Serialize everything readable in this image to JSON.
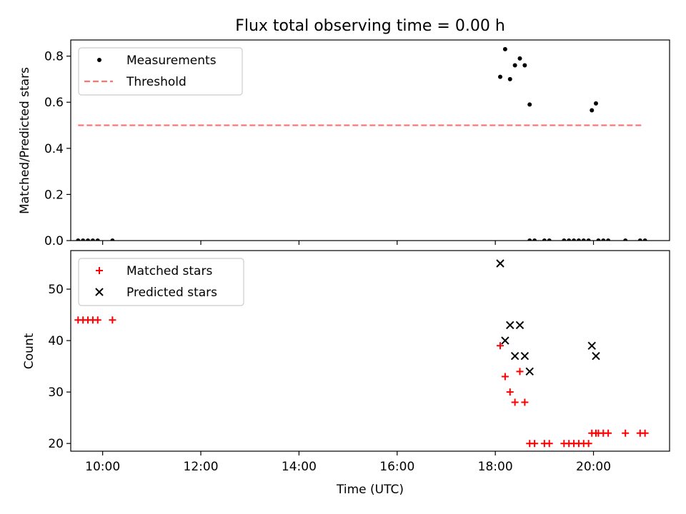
{
  "chart_data": [
    {
      "type": "scatter",
      "title": "Flux total observing time = 0.00 h",
      "xlabel": "",
      "ylabel": "Matched/Predicted stars",
      "x_unit": "time of day (UTC)",
      "xlim": [
        "09:21",
        "21:33"
      ],
      "ylim": [
        0,
        0.87
      ],
      "y_ticks": [
        0,
        0.2,
        0.4,
        0.6,
        0.8
      ],
      "y_tick_labels": [
        "0.0",
        "0.2",
        "0.4",
        "0.6",
        "0.8"
      ],
      "x_tick_labels_visible": false,
      "grid": false,
      "legend": "top-left",
      "series": [
        {
          "name": "Measurements",
          "marker": "dot",
          "color": "#000000",
          "points": [
            [
              "09:30",
              0
            ],
            [
              "09:36",
              0
            ],
            [
              "09:42",
              0
            ],
            [
              "09:48",
              0
            ],
            [
              "09:54",
              0
            ],
            [
              "10:12",
              0
            ],
            [
              "18:06",
              0.71
            ],
            [
              "18:12",
              0.83
            ],
            [
              "18:18",
              0.7
            ],
            [
              "18:24",
              0.76
            ],
            [
              "18:30",
              0.79
            ],
            [
              "18:36",
              0.76
            ],
            [
              "18:42",
              0.59
            ],
            [
              "18:42",
              0
            ],
            [
              "18:48",
              0
            ],
            [
              "19:00",
              0
            ],
            [
              "19:06",
              0
            ],
            [
              "19:24",
              0
            ],
            [
              "19:30",
              0
            ],
            [
              "19:36",
              0
            ],
            [
              "19:42",
              0
            ],
            [
              "19:48",
              0
            ],
            [
              "19:54",
              0
            ],
            [
              "19:58",
              0.565
            ],
            [
              "20:03",
              0.595
            ],
            [
              "20:06",
              0
            ],
            [
              "20:12",
              0
            ],
            [
              "20:18",
              0
            ],
            [
              "20:39",
              0
            ],
            [
              "20:57",
              0
            ],
            [
              "21:03",
              0
            ]
          ]
        },
        {
          "name": "Threshold",
          "style": "dashed",
          "color": "#ff7373",
          "points": [
            [
              "09:30",
              0.5
            ],
            [
              "21:00",
              0.5
            ]
          ]
        }
      ]
    },
    {
      "type": "scatter",
      "title": "",
      "xlabel": "Time (UTC)",
      "ylabel": "Count",
      "xlim": [
        "09:21",
        "21:33"
      ],
      "ylim": [
        18.5,
        57.5
      ],
      "y_ticks": [
        20,
        30,
        40,
        50
      ],
      "y_tick_labels": [
        "20",
        "30",
        "40",
        "50"
      ],
      "x_ticks": [
        "10:00",
        "12:00",
        "14:00",
        "16:00",
        "18:00",
        "20:00"
      ],
      "x_tick_labels": [
        "10:00",
        "12:00",
        "14:00",
        "16:00",
        "18:00",
        "20:00"
      ],
      "grid": false,
      "legend": "top-left",
      "series": [
        {
          "name": "Matched stars",
          "marker": "plus",
          "color": "#ff0000",
          "points": [
            [
              "09:30",
              44
            ],
            [
              "09:36",
              44
            ],
            [
              "09:42",
              44
            ],
            [
              "09:48",
              44
            ],
            [
              "09:54",
              44
            ],
            [
              "10:12",
              44
            ],
            [
              "18:06",
              39
            ],
            [
              "18:12",
              33
            ],
            [
              "18:18",
              30
            ],
            [
              "18:24",
              28
            ],
            [
              "18:30",
              34
            ],
            [
              "18:36",
              28
            ],
            [
              "18:42",
              20
            ],
            [
              "18:48",
              20
            ],
            [
              "19:00",
              20
            ],
            [
              "19:06",
              20
            ],
            [
              "19:24",
              20
            ],
            [
              "19:30",
              20
            ],
            [
              "19:36",
              20
            ],
            [
              "19:42",
              20
            ],
            [
              "19:48",
              20
            ],
            [
              "19:54",
              20
            ],
            [
              "19:58",
              22
            ],
            [
              "20:03",
              22
            ],
            [
              "20:06",
              22
            ],
            [
              "20:12",
              22
            ],
            [
              "20:18",
              22
            ],
            [
              "20:39",
              22
            ],
            [
              "20:57",
              22
            ],
            [
              "21:03",
              22
            ]
          ]
        },
        {
          "name": "Predicted stars",
          "marker": "cross",
          "color": "#000000",
          "points": [
            [
              "18:06",
              55
            ],
            [
              "18:12",
              40
            ],
            [
              "18:18",
              43
            ],
            [
              "18:24",
              37
            ],
            [
              "18:30",
              43
            ],
            [
              "18:36",
              37
            ],
            [
              "18:42",
              34
            ],
            [
              "19:58",
              39
            ],
            [
              "20:03",
              37
            ]
          ]
        }
      ]
    }
  ]
}
